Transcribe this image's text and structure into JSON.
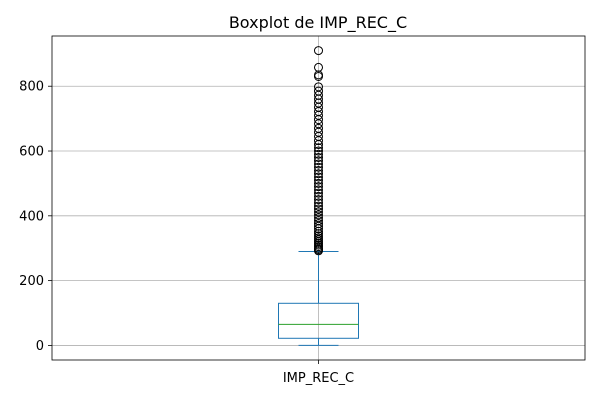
{
  "chart_data": {
    "type": "boxplot",
    "title": "Boxplot de IMP_REC_C",
    "categories": [
      "IMP_REC_C"
    ],
    "ylim": [
      -45,
      955
    ],
    "yticks": [
      0,
      200,
      400,
      600,
      800
    ],
    "grid": true,
    "box": {
      "min": 0,
      "q1": 22,
      "median": 65,
      "q3": 130,
      "max": 290
    },
    "outliers": [
      292,
      296,
      300,
      305,
      310,
      315,
      320,
      326,
      332,
      338,
      345,
      352,
      360,
      368,
      376,
      385,
      394,
      403,
      412,
      421,
      430,
      440,
      450,
      460,
      470,
      480,
      490,
      500,
      510,
      520,
      530,
      540,
      550,
      560,
      570,
      580,
      590,
      600,
      610,
      620,
      632,
      645,
      658,
      670,
      684,
      697,
      710,
      722,
      735,
      748,
      760,
      772,
      785,
      798,
      830,
      835,
      858,
      910
    ]
  }
}
